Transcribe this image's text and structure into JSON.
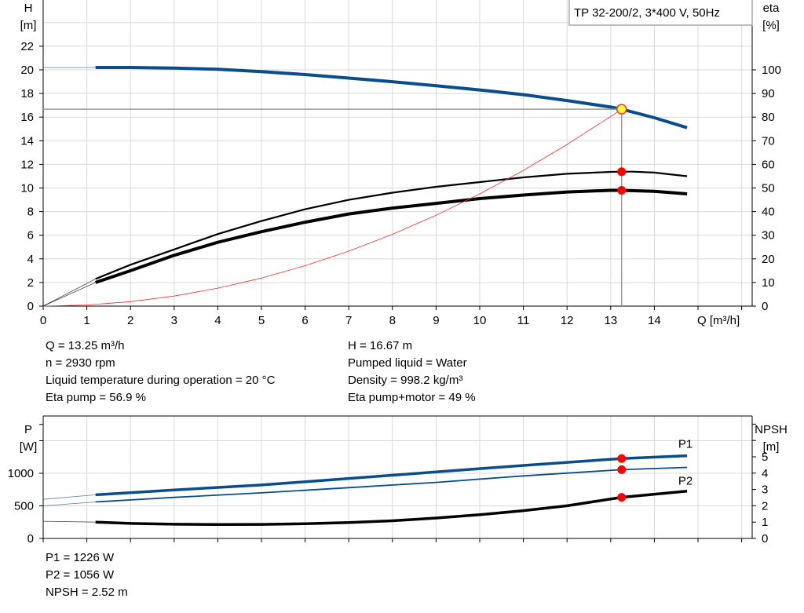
{
  "title_box": "TP 32-200/2, 3*400 V, 50Hz",
  "chart_data": [
    {
      "type": "line",
      "title": "TP 32-200/2, 3*400 V, 50Hz",
      "xlabel": "Q [m³/h]",
      "ylabel_left": [
        "H",
        "[m]"
      ],
      "ylabel_right": [
        "eta",
        "[%]"
      ],
      "xlim": [
        0,
        16
      ],
      "ylim_left": [
        0,
        26
      ],
      "ylim_right": [
        0,
        130
      ],
      "x_ticks": [
        0,
        1,
        2,
        3,
        4,
        5,
        6,
        7,
        8,
        9,
        10,
        11,
        12,
        13,
        14
      ],
      "y_ticks_left": [
        0,
        2,
        4,
        6,
        8,
        10,
        12,
        14,
        16,
        18,
        20,
        22
      ],
      "y_ticks_right": [
        0,
        10,
        20,
        30,
        40,
        50,
        60,
        70,
        80,
        90,
        100
      ],
      "grid": true,
      "series": [
        {
          "axis": "left",
          "color": "#0a4d8c",
          "width": 4,
          "extrapolated_to": [
            0,
            20.2
          ],
          "x": [
            1.2,
            2,
            3,
            4,
            5,
            6,
            7,
            8,
            9,
            10,
            11,
            12,
            13,
            13.25,
            14,
            14.75
          ],
          "y": [
            20.2,
            20.2,
            20.15,
            20.05,
            19.85,
            19.6,
            19.3,
            19.0,
            18.65,
            18.3,
            17.9,
            17.4,
            16.85,
            16.67,
            15.95,
            15.1
          ]
        },
        {
          "axis": "right",
          "color": "#000000",
          "width": 2.2,
          "extrapolated_to": [
            0,
            0
          ],
          "x": [
            1.2,
            2,
            3,
            4,
            5,
            6,
            7,
            8,
            9,
            10,
            11,
            12,
            13,
            13.25,
            13.5,
            14,
            14.75
          ],
          "y": [
            11.5,
            17.5,
            24,
            30.5,
            36,
            41,
            45,
            48,
            50.5,
            52.5,
            54.5,
            56,
            56.8,
            56.9,
            56.9,
            56.5,
            55
          ]
        },
        {
          "axis": "right",
          "color": "#000000",
          "width": 4,
          "extrapolated_to": [
            0,
            0
          ],
          "x": [
            1.2,
            2,
            3,
            4,
            5,
            6,
            7,
            8,
            9,
            10,
            11,
            12,
            13,
            13.25,
            14,
            14.75
          ],
          "y": [
            10,
            15,
            21.5,
            27,
            31.5,
            35.5,
            39,
            41.5,
            43.5,
            45.5,
            47,
            48.3,
            49,
            49,
            48.6,
            47.5
          ]
        },
        {
          "axis": "left",
          "color": "#ff2a2a",
          "width": 0.8,
          "x": [
            0,
            1,
            2,
            3,
            4,
            5,
            6,
            7,
            8,
            9,
            10,
            11,
            12,
            13,
            13.25
          ],
          "y": [
            0,
            0.095,
            0.38,
            0.85,
            1.52,
            2.37,
            3.42,
            4.65,
            6.08,
            7.69,
            9.5,
            11.49,
            13.68,
            16.05,
            16.67
          ]
        }
      ],
      "duty_point": {
        "Q": 13.25,
        "H": 16.67,
        "eta_pump": 56.9,
        "eta_pump_motor": 49
      }
    },
    {
      "type": "line",
      "ylabel_left": [
        "P",
        "[W]"
      ],
      "ylabel_right": [
        "NPSH",
        "[m]"
      ],
      "xlim": [
        0,
        16
      ],
      "ylim_left": [
        0,
        1750
      ],
      "ylim_right": [
        0,
        7
      ],
      "y_ticks_left": [
        0,
        500,
        1000
      ],
      "y_ticks_right": [
        0,
        1,
        2,
        3,
        4,
        5
      ],
      "grid": true,
      "series": [
        {
          "name": "P1",
          "axis": "left",
          "color": "#0a4d8c",
          "width": 3.5,
          "extrapolated_to": [
            0,
            600
          ],
          "x": [
            1.2,
            3,
            5,
            7,
            9,
            11,
            13.25,
            14.75
          ],
          "y": [
            670,
            745,
            820,
            920,
            1020,
            1120,
            1226,
            1270
          ]
        },
        {
          "name": "P2",
          "axis": "left",
          "color": "#0a4d8c",
          "width": 1.8,
          "extrapolated_to": [
            0,
            500
          ],
          "x": [
            1.2,
            3,
            5,
            7,
            9,
            11,
            13.25,
            14.75
          ],
          "y": [
            560,
            630,
            700,
            780,
            860,
            960,
            1056,
            1090
          ]
        },
        {
          "axis": "right",
          "color": "#000000",
          "width": 3.5,
          "extrapolated_to": [
            0,
            1.05
          ],
          "x": [
            1.2,
            2,
            3,
            4,
            5,
            6,
            7,
            8,
            9,
            10,
            11,
            12,
            13.25,
            14.75
          ],
          "y": [
            1.0,
            0.92,
            0.87,
            0.85,
            0.86,
            0.9,
            0.97,
            1.08,
            1.25,
            1.45,
            1.7,
            2.0,
            2.52,
            2.9
          ]
        }
      ],
      "duty_point": {
        "Q": 13.25,
        "P1": 1226,
        "P2": 1056,
        "NPSH": 2.52
      }
    }
  ],
  "info_top_left": [
    "Q = 13.25 m³/h",
    "n = 2930 rpm",
    "Liquid temperature during operation = 20 °C",
    "Eta pump = 56.9 %"
  ],
  "info_top_right": [
    "H = 16.67 m",
    "Pumped liquid = Water",
    "Density = 998.2 kg/m³",
    "Eta pump+motor = 49 %"
  ],
  "info_bottom": [
    "P1 = 1226 W",
    "P2 = 1056 W",
    "NPSH = 2.52 m"
  ]
}
